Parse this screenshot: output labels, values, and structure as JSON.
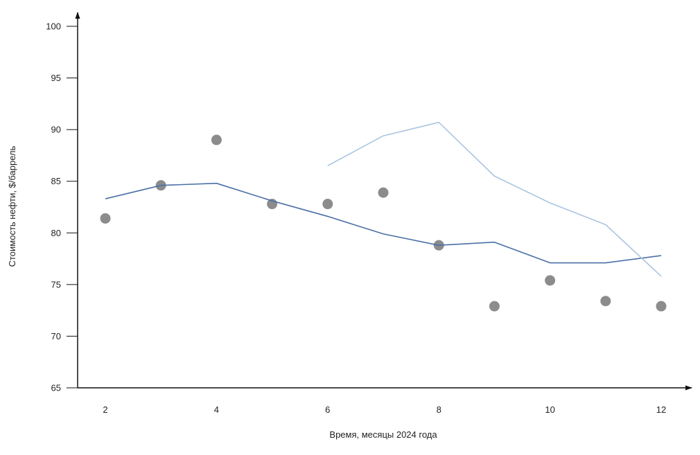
{
  "chart_data": {
    "type": "line",
    "title": "",
    "xlabel": "Время, месяцы 2024 года",
    "ylabel": "Стоимость нефти, $/баррель",
    "xlim": [
      1.5,
      13
    ],
    "ylim": [
      65,
      100
    ],
    "x_ticks": [
      2,
      4,
      6,
      8,
      10,
      12
    ],
    "y_ticks": [
      65,
      70,
      75,
      80,
      85,
      90,
      95,
      100
    ],
    "grid": false,
    "legend": "none",
    "series": [
      {
        "type": "scatter",
        "color": "#8c8c8c",
        "x": [
          2,
          3,
          4,
          5,
          6,
          7,
          8,
          9,
          10,
          11,
          12
        ],
        "values": [
          81.4,
          84.6,
          89.0,
          82.8,
          82.8,
          83.9,
          78.8,
          72.9,
          75.4,
          73.4,
          72.9
        ]
      },
      {
        "type": "line",
        "color": "#4a6fa5",
        "x": [
          2,
          3,
          4,
          5,
          6,
          7,
          8,
          9,
          10,
          11,
          12
        ],
        "values": [
          83.3,
          84.6,
          84.8,
          83.1,
          81.6,
          79.9,
          78.8,
          79.1,
          77.1,
          77.1,
          77.8
        ]
      },
      {
        "type": "line",
        "color": "#a9c4e0",
        "x": [
          6,
          7,
          8,
          9,
          10,
          11,
          12
        ],
        "values": [
          86.5,
          89.4,
          90.7,
          85.5,
          82.9,
          80.8,
          75.8
        ]
      }
    ]
  }
}
